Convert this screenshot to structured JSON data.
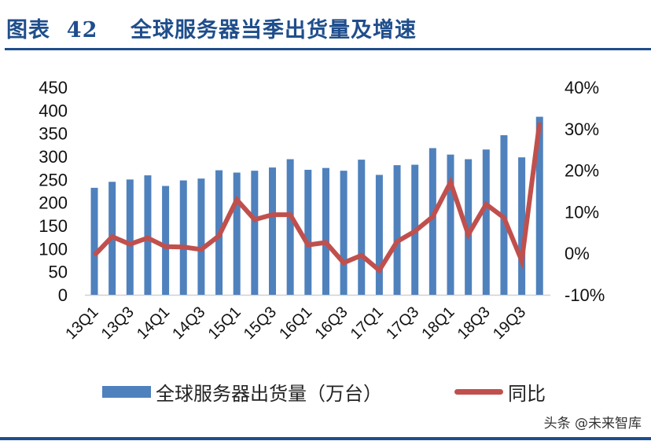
{
  "header": {
    "title": "图表  42    全球服务器当季出货量及增速"
  },
  "legend": {
    "bar_label": "全球服务器出货量（万台）",
    "line_label": "同比"
  },
  "watermark": "头条 @未来智库",
  "colors": {
    "title": "#1f4e8c",
    "bar": "#4f81bd",
    "line": "#c0504d",
    "rule": "#1f4e8c"
  },
  "chart_data": {
    "type": "bar+line",
    "title": "全球服务器当季出货量及增速",
    "categories": [
      "13Q1",
      "13Q2",
      "13Q3",
      "13Q4",
      "14Q1",
      "14Q2",
      "14Q3",
      "14Q4",
      "15Q1",
      "15Q2",
      "15Q3",
      "15Q4",
      "16Q1",
      "16Q2",
      "16Q3",
      "16Q4",
      "17Q1",
      "17Q2",
      "17Q3",
      "17Q4",
      "18Q1",
      "18Q2",
      "18Q3",
      "18Q4",
      "19Q3",
      "19Q4"
    ],
    "x_tick_labels": [
      "13Q1",
      "13Q3",
      "14Q1",
      "14Q3",
      "15Q1",
      "15Q3",
      "16Q1",
      "16Q3",
      "17Q1",
      "17Q3",
      "18Q1",
      "18Q3",
      "19Q3"
    ],
    "series": [
      {
        "name": "全球服务器出货量（万台）",
        "type": "bar",
        "axis": "left",
        "values": [
          232,
          245,
          250,
          259,
          236,
          248,
          252,
          270,
          265,
          269,
          276,
          294,
          271,
          275,
          269,
          293,
          260,
          281,
          282,
          318,
          304,
          294,
          315,
          346,
          298,
          386
        ]
      },
      {
        "name": "同比",
        "type": "line",
        "axis": "right",
        "unit": "%",
        "values": [
          -0.5,
          4.0,
          2.2,
          3.7,
          1.6,
          1.5,
          0.9,
          4.2,
          12.9,
          8.1,
          9.3,
          9.3,
          2.0,
          2.6,
          -2.3,
          -0.5,
          -4.1,
          2.8,
          5.3,
          8.8,
          17.1,
          4.5,
          11.8,
          8.6,
          -1.8,
          31.5
        ]
      }
    ],
    "y_left": {
      "ticks": [
        "0",
        "50",
        "100",
        "150",
        "200",
        "250",
        "300",
        "350",
        "400",
        "450"
      ],
      "ylim": [
        0,
        450
      ]
    },
    "y_right": {
      "ticks": [
        "-10%",
        "0%",
        "10%",
        "20%",
        "30%",
        "40%"
      ],
      "ylim": [
        -10,
        40
      ]
    },
    "legend_position": "bottom",
    "grid": false
  }
}
